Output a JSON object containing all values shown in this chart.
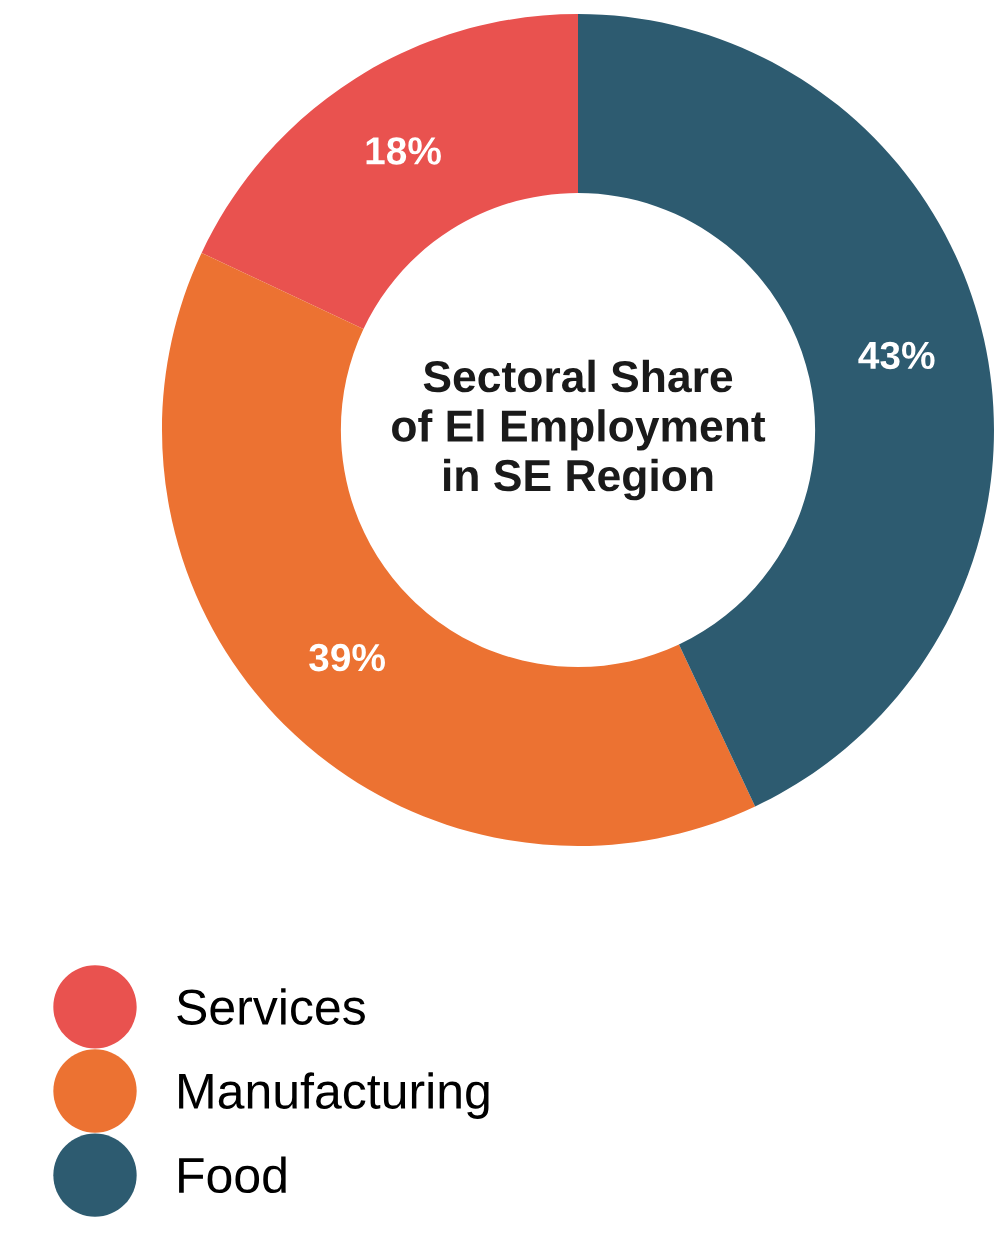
{
  "chart_data": {
    "type": "donut",
    "title": "Sectoral Share\nof El Employment\nin SE Region",
    "categories": [
      "Services",
      "Manufacturing",
      "Food"
    ],
    "values": [
      18,
      39,
      43
    ],
    "colors": [
      "#e9524f",
      "#ec7232",
      "#2d5b70"
    ],
    "value_labels": [
      "18%",
      "39%",
      "43%"
    ],
    "legend": "bottom left"
  }
}
